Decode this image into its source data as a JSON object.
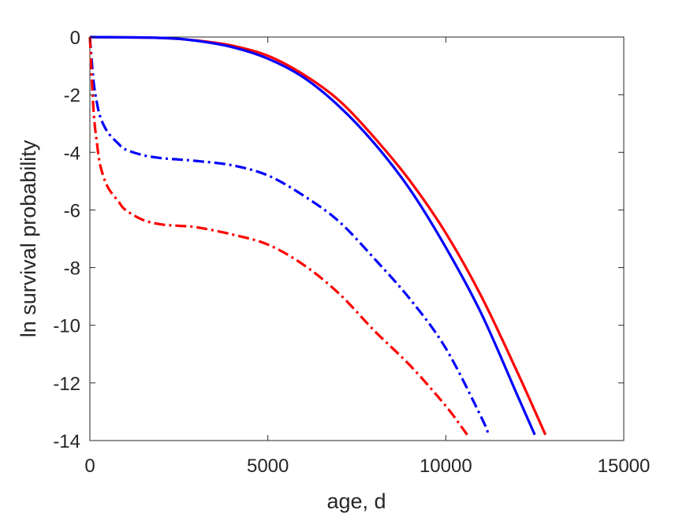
{
  "chart_data": {
    "type": "line",
    "title": "",
    "xlabel": "age, d",
    "ylabel": "ln survival probability",
    "xlim": [
      0,
      15000
    ],
    "ylim": [
      -14,
      0
    ],
    "xticks": [
      0,
      5000,
      10000,
      15000
    ],
    "yticks": [
      0,
      -2,
      -4,
      -6,
      -8,
      -10,
      -12,
      -14
    ],
    "grid": false,
    "legend": "none",
    "series": [
      {
        "color": "#ff0000",
        "style": "solid",
        "x": [
          0,
          2000,
          3000,
          4000,
          5000,
          6000,
          7000,
          8000,
          9000,
          10000,
          11000,
          12000,
          12800
        ],
        "y": [
          0,
          -0.03,
          -0.12,
          -0.3,
          -0.65,
          -1.3,
          -2.2,
          -3.5,
          -5.0,
          -6.8,
          -9.0,
          -11.6,
          -13.8
        ]
      },
      {
        "color": "#0000ff",
        "style": "solid",
        "x": [
          0,
          2000,
          3000,
          4000,
          5000,
          6000,
          7000,
          8000,
          9000,
          10000,
          11000,
          12000,
          12500
        ],
        "y": [
          0,
          -0.03,
          -0.13,
          -0.35,
          -0.75,
          -1.4,
          -2.4,
          -3.7,
          -5.3,
          -7.3,
          -9.6,
          -12.4,
          -13.8
        ]
      },
      {
        "color": "#0000ff",
        "style": "dashdot",
        "x": [
          0,
          100,
          200,
          300,
          500,
          800,
          1000,
          1500,
          2000,
          2500,
          3000,
          4000,
          5000,
          6000,
          7000,
          8000,
          9000,
          10000,
          11000,
          11200
        ],
        "y": [
          0,
          -1.5,
          -2.3,
          -2.8,
          -3.3,
          -3.7,
          -3.9,
          -4.1,
          -4.2,
          -4.25,
          -4.3,
          -4.45,
          -4.8,
          -5.5,
          -6.4,
          -7.7,
          -9.1,
          -10.8,
          -13.2,
          -13.8
        ]
      },
      {
        "color": "#ff0000",
        "style": "dashdot",
        "x": [
          0,
          100,
          200,
          300,
          500,
          800,
          1000,
          1500,
          2000,
          2500,
          3000,
          4000,
          5000,
          6000,
          7000,
          8000,
          9000,
          10000,
          10600
        ],
        "y": [
          0,
          -2.5,
          -3.7,
          -4.5,
          -5.2,
          -5.7,
          -6.0,
          -6.35,
          -6.5,
          -6.55,
          -6.6,
          -6.85,
          -7.2,
          -7.9,
          -8.9,
          -10.2,
          -11.4,
          -12.8,
          -13.8
        ]
      }
    ]
  }
}
